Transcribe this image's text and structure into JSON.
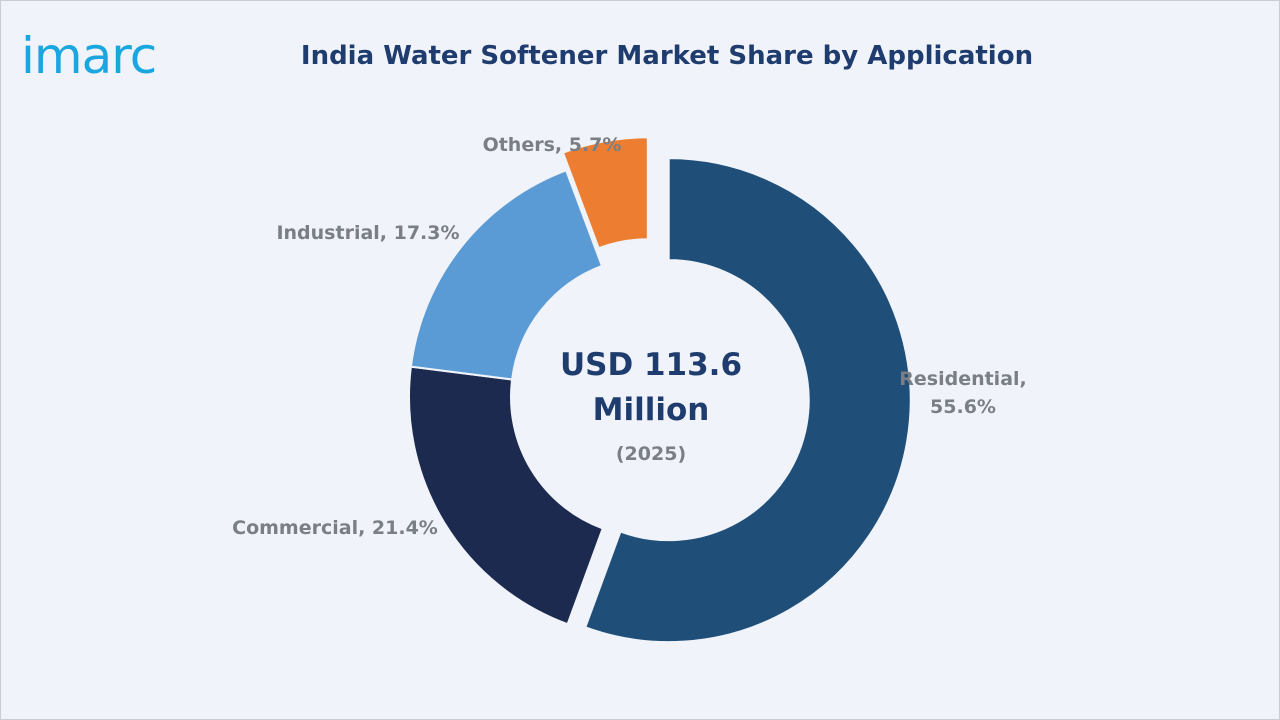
{
  "brand": {
    "logo_text": "imarc",
    "color": "#1aa7e0"
  },
  "chart_data": {
    "type": "pie",
    "title": "India Water Softener Market Share by Application",
    "center": {
      "value_line1": "USD 113.6",
      "value_line2": "Million",
      "year": "(2025)"
    },
    "categories": [
      "Residential",
      "Commercial",
      "Industrial",
      "Others"
    ],
    "values": [
      55.6,
      21.4,
      17.3,
      5.7
    ],
    "labels": [
      [
        "Residential,",
        "55.6%"
      ],
      [
        "Commercial, 21.4%"
      ],
      [
        "Industrial, 17.3%"
      ],
      [
        "Others, 5.7%"
      ]
    ],
    "colors": [
      "#1f4e79",
      "#1b2a4e",
      "#5b9bd5",
      "#ed7d31"
    ],
    "exploded": [
      "Residential",
      "Others"
    ],
    "style": "donut"
  }
}
